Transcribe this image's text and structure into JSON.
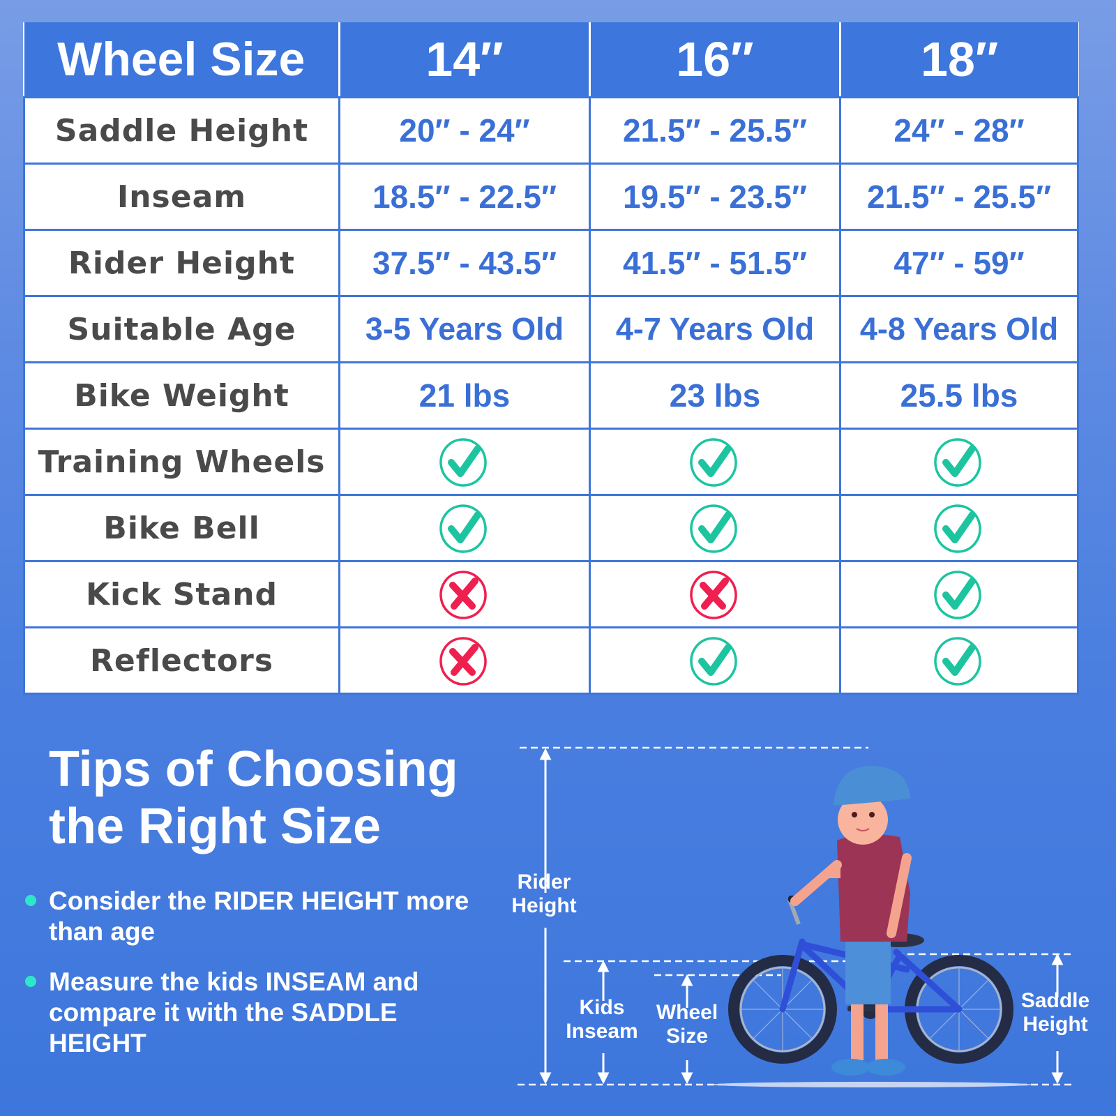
{
  "size_chart": {
    "header": {
      "label": "Wheel Size",
      "columns": [
        "14″",
        "16″",
        "18″"
      ]
    },
    "rows": [
      {
        "label": "Saddle Height",
        "type": "text",
        "values": [
          "20″ - 24″",
          "21.5″ - 25.5″",
          "24″ - 28″"
        ]
      },
      {
        "label": "Inseam",
        "type": "text",
        "values": [
          "18.5″ - 22.5″",
          "19.5″ - 23.5″",
          "21.5″ - 25.5″"
        ]
      },
      {
        "label": "Rider Height",
        "type": "text",
        "values": [
          "37.5″ - 43.5″",
          "41.5″ - 51.5″",
          "47″ - 59″"
        ]
      },
      {
        "label": "Suitable Age",
        "type": "text",
        "values": [
          "3-5 Years Old",
          "4-7 Years Old",
          "4-8 Years Old"
        ]
      },
      {
        "label": "Bike Weight",
        "type": "text",
        "values": [
          "21 lbs",
          "23 lbs",
          "25.5 lbs"
        ]
      },
      {
        "label": "Training Wheels",
        "type": "icon",
        "values": [
          "check",
          "check",
          "check"
        ]
      },
      {
        "label": "Bike Bell",
        "type": "icon",
        "values": [
          "check",
          "check",
          "check"
        ]
      },
      {
        "label": "Kick Stand",
        "type": "icon",
        "values": [
          "cross",
          "cross",
          "check"
        ]
      },
      {
        "label": "Reflectors",
        "type": "icon",
        "values": [
          "cross",
          "check",
          "check"
        ]
      }
    ]
  },
  "tips": {
    "title_line1": "Tips of Choosing",
    "title_line2": "the Right Size",
    "items": [
      "Consider the RIDER HEIGHT more than age",
      "Measure the kids INSEAM and compare it with the SADDLE HEIGHT"
    ]
  },
  "diagram": {
    "labels": {
      "rider_height_1": "Rider",
      "rider_height_2": "Height",
      "kids_inseam_1": "Kids",
      "kids_inseam_2": "Inseam",
      "wheel_size_1": "Wheel",
      "wheel_size_2": "Size",
      "saddle_height_1": "Saddle",
      "saddle_height_2": "Height"
    }
  },
  "colors": {
    "header_blue": "#3d76dc",
    "value_blue": "#3a6fd6",
    "label_gray": "#4a4a4a",
    "check_green": "#1dc4a0",
    "cross_red": "#ef1f4f",
    "bullet_teal": "#2ee6c8"
  }
}
